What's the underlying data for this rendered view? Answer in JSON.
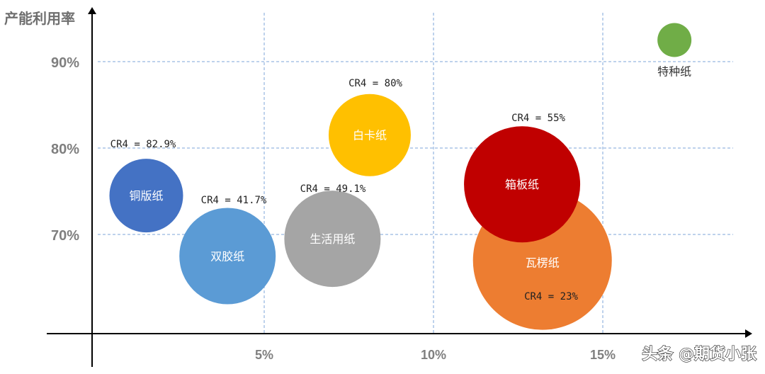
{
  "chart_data": {
    "type": "bubble",
    "ylabel": "产能利用率",
    "xlabel": "",
    "x_ticks": [
      {
        "value": 5,
        "label": "5%"
      },
      {
        "value": 10,
        "label": "10%"
      },
      {
        "value": 15,
        "label": "15%"
      }
    ],
    "y_ticks": [
      {
        "value": 70,
        "label": "70%"
      },
      {
        "value": 80,
        "label": "80%"
      },
      {
        "value": 90,
        "label": "90%"
      }
    ],
    "xlim": [
      0,
      19.4
    ],
    "ylim": [
      58,
      96
    ],
    "grid": true,
    "points": [
      {
        "name": "铜版纸",
        "x": 1.6,
        "y": 74.5,
        "cr4": "CR4 = 82.9%",
        "color": "#4472c4",
        "size": 52
      },
      {
        "name": "双胶纸",
        "x": 4.0,
        "y": 67.5,
        "cr4": "CR4 = 41.7%",
        "color": "#5b9bd5",
        "size": 68
      },
      {
        "name": "生活用纸",
        "x": 7.1,
        "y": 69.5,
        "cr4": "CR4 = 49.1%",
        "color": "#a5a5a5",
        "size": 68
      },
      {
        "name": "白卡纸",
        "x": 8.2,
        "y": 81.5,
        "cr4": "CR4 = 80%",
        "color": "#ffc000",
        "size": 58
      },
      {
        "name": "瓦楞纸",
        "x": 13.3,
        "y": 67,
        "cr4": "CR4 = 23%",
        "color": "#ed7d31",
        "size": 98
      },
      {
        "name": "箱板纸",
        "x": 12.7,
        "y": 75.8,
        "cr4": "CR4 = 55%",
        "color": "#c00000",
        "size": 82
      },
      {
        "name": "特种纸",
        "x": 17.2,
        "y": 92.5,
        "cr4": "",
        "color": "#70ad47",
        "size": 24
      }
    ]
  },
  "watermark": "头条 @期货小张"
}
